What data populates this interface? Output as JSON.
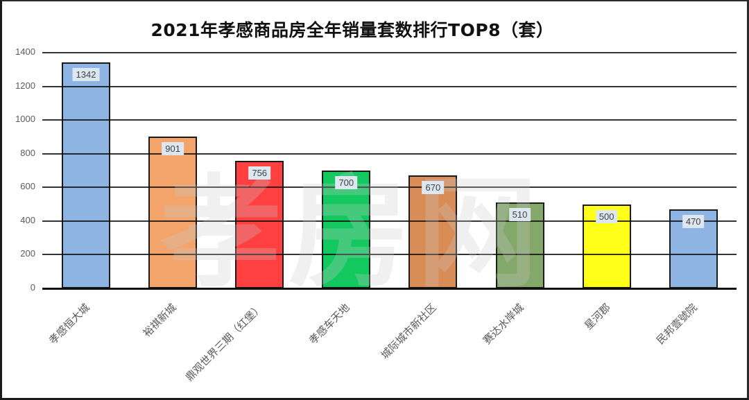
{
  "chart_data": {
    "type": "bar",
    "title": "2021年孝感商品房全年销量套数排行TOP8（套）",
    "xlabel": "",
    "ylabel": "",
    "ylim": [
      0,
      1400
    ],
    "yticks": [
      "0",
      "200",
      "400",
      "600",
      "800",
      "1000",
      "1200",
      "1400"
    ],
    "grid": true,
    "legend": null,
    "categories": [
      "孝感恒大城",
      "裕祺新城",
      "鼎观世界三期（红堡）",
      "孝感车天地",
      "城际城市新社区",
      "赛达水岸城",
      "星河郡",
      "民邦壹號院"
    ],
    "values": [
      1342,
      901,
      756,
      700,
      670,
      510,
      500,
      470
    ],
    "value_labels": [
      "1342",
      "901",
      "756",
      "700",
      "670",
      "510",
      "500",
      "470"
    ],
    "bar_colors": [
      "#8db4e2",
      "#f2a46b",
      "#ff4040",
      "#13c95f",
      "#d98c56",
      "#84a86a",
      "#ffff1a",
      "#8db4e2"
    ],
    "watermark": "孝房网"
  }
}
